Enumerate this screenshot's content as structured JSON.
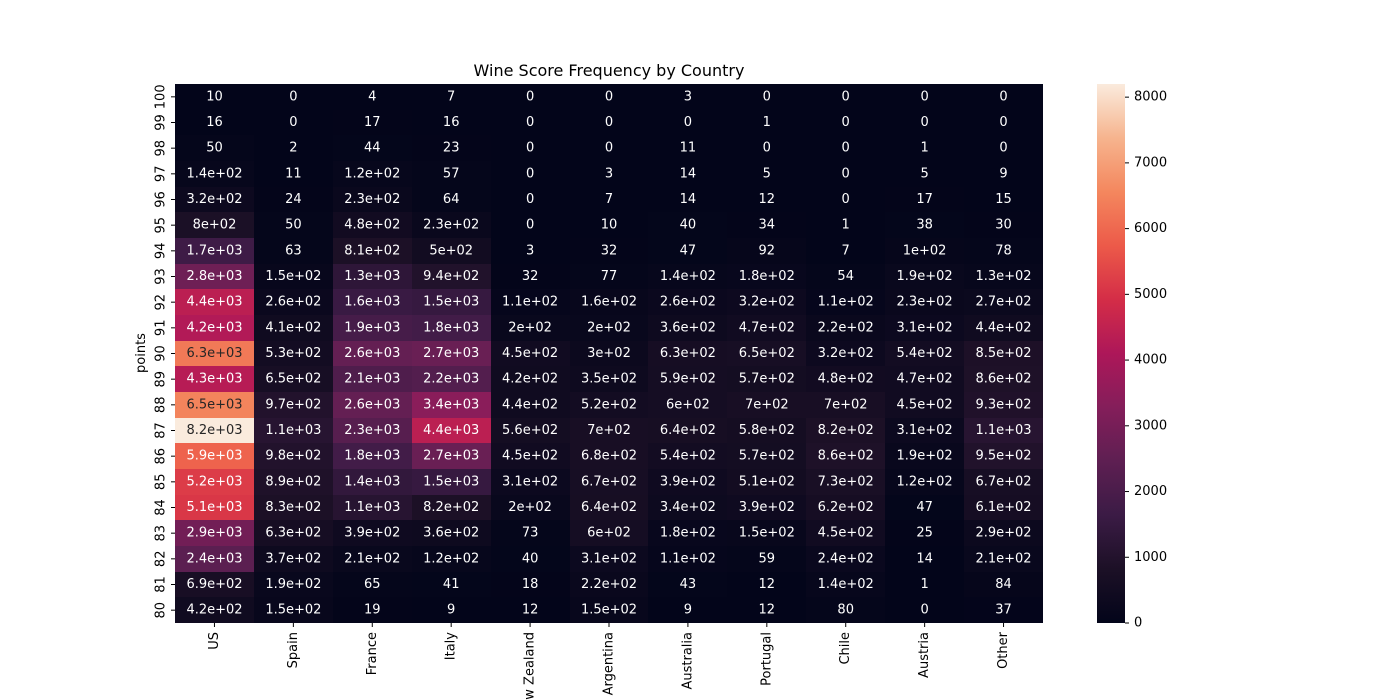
{
  "chart_data": {
    "type": "heatmap",
    "title": "Wine Score Frequency by Country",
    "xlabel": "",
    "ylabel": "points",
    "x_categories": [
      "US",
      "Spain",
      "France",
      "Italy",
      "New Zealand",
      "Argentina",
      "Australia",
      "Portugal",
      "Chile",
      "Austria",
      "Other"
    ],
    "y_categories": [
      "100",
      "99",
      "98",
      "97",
      "96",
      "95",
      "94",
      "93",
      "92",
      "91",
      "90",
      "89",
      "88",
      "87",
      "86",
      "85",
      "84",
      "83",
      "82",
      "81",
      "80"
    ],
    "values": [
      [
        10,
        0,
        4,
        7,
        0,
        0,
        3,
        0,
        0,
        0,
        0
      ],
      [
        16,
        0,
        17,
        16,
        0,
        0,
        0,
        1,
        0,
        0,
        0
      ],
      [
        50,
        2,
        44,
        23,
        0,
        0,
        11,
        0,
        0,
        1,
        0
      ],
      [
        140,
        11,
        120,
        57,
        0,
        3,
        14,
        5,
        0,
        5,
        9
      ],
      [
        320,
        24,
        230,
        64,
        0,
        7,
        14,
        12,
        0,
        17,
        15
      ],
      [
        800,
        50,
        480,
        230,
        0,
        10,
        40,
        34,
        1,
        38,
        30
      ],
      [
        1700,
        63,
        810,
        500,
        3,
        32,
        47,
        92,
        7,
        100,
        78
      ],
      [
        2800,
        150,
        1300,
        940,
        32,
        77,
        140,
        180,
        54,
        190,
        130
      ],
      [
        4400,
        260,
        1600,
        1500,
        110,
        160,
        260,
        320,
        110,
        230,
        270
      ],
      [
        4200,
        410,
        1900,
        1800,
        200,
        200,
        360,
        470,
        220,
        310,
        440
      ],
      [
        6300,
        530,
        2600,
        2700,
        450,
        300,
        630,
        650,
        320,
        540,
        850
      ],
      [
        4300,
        650,
        2100,
        2200,
        420,
        350,
        590,
        570,
        480,
        470,
        860
      ],
      [
        6500,
        970,
        2600,
        3400,
        440,
        520,
        600,
        700,
        700,
        450,
        930
      ],
      [
        8200,
        1100,
        2300,
        4400,
        560,
        700,
        640,
        580,
        820,
        310,
        1100
      ],
      [
        5900,
        980,
        1800,
        2700,
        450,
        680,
        540,
        570,
        860,
        190,
        950
      ],
      [
        5200,
        890,
        1400,
        1500,
        310,
        670,
        390,
        510,
        730,
        120,
        670
      ],
      [
        5100,
        830,
        1100,
        820,
        200,
        640,
        340,
        390,
        620,
        47,
        610
      ],
      [
        2900,
        630,
        390,
        360,
        73,
        600,
        180,
        150,
        450,
        25,
        290
      ],
      [
        2400,
        370,
        210,
        120,
        40,
        310,
        110,
        59,
        240,
        14,
        210
      ],
      [
        690,
        190,
        65,
        41,
        18,
        220,
        43,
        12,
        140,
        1,
        84
      ],
      [
        420,
        150,
        19,
        9,
        12,
        150,
        9,
        12,
        80,
        0,
        37
      ]
    ],
    "labels": [
      [
        "10",
        "0",
        "4",
        "7",
        "0",
        "0",
        "3",
        "0",
        "0",
        "0",
        "0"
      ],
      [
        "16",
        "0",
        "17",
        "16",
        "0",
        "0",
        "0",
        "1",
        "0",
        "0",
        "0"
      ],
      [
        "50",
        "2",
        "44",
        "23",
        "0",
        "0",
        "11",
        "0",
        "0",
        "1",
        "0"
      ],
      [
        "1.4e+02",
        "11",
        "1.2e+02",
        "57",
        "0",
        "3",
        "14",
        "5",
        "0",
        "5",
        "9"
      ],
      [
        "3.2e+02",
        "24",
        "2.3e+02",
        "64",
        "0",
        "7",
        "14",
        "12",
        "0",
        "17",
        "15"
      ],
      [
        "8e+02",
        "50",
        "4.8e+02",
        "2.3e+02",
        "0",
        "10",
        "40",
        "34",
        "1",
        "38",
        "30"
      ],
      [
        "1.7e+03",
        "63",
        "8.1e+02",
        "5e+02",
        "3",
        "32",
        "47",
        "92",
        "7",
        "1e+02",
        "78"
      ],
      [
        "2.8e+03",
        "1.5e+02",
        "1.3e+03",
        "9.4e+02",
        "32",
        "77",
        "1.4e+02",
        "1.8e+02",
        "54",
        "1.9e+02",
        "1.3e+02"
      ],
      [
        "4.4e+03",
        "2.6e+02",
        "1.6e+03",
        "1.5e+03",
        "1.1e+02",
        "1.6e+02",
        "2.6e+02",
        "3.2e+02",
        "1.1e+02",
        "2.3e+02",
        "2.7e+02"
      ],
      [
        "4.2e+03",
        "4.1e+02",
        "1.9e+03",
        "1.8e+03",
        "2e+02",
        "2e+02",
        "3.6e+02",
        "4.7e+02",
        "2.2e+02",
        "3.1e+02",
        "4.4e+02"
      ],
      [
        "6.3e+03",
        "5.3e+02",
        "2.6e+03",
        "2.7e+03",
        "4.5e+02",
        "3e+02",
        "6.3e+02",
        "6.5e+02",
        "3.2e+02",
        "5.4e+02",
        "8.5e+02"
      ],
      [
        "4.3e+03",
        "6.5e+02",
        "2.1e+03",
        "2.2e+03",
        "4.2e+02",
        "3.5e+02",
        "5.9e+02",
        "5.7e+02",
        "4.8e+02",
        "4.7e+02",
        "8.6e+02"
      ],
      [
        "6.5e+03",
        "9.7e+02",
        "2.6e+03",
        "3.4e+03",
        "4.4e+02",
        "5.2e+02",
        "6e+02",
        "7e+02",
        "7e+02",
        "4.5e+02",
        "9.3e+02"
      ],
      [
        "8.2e+03",
        "1.1e+03",
        "2.3e+03",
        "4.4e+03",
        "5.6e+02",
        "7e+02",
        "6.4e+02",
        "5.8e+02",
        "8.2e+02",
        "3.1e+02",
        "1.1e+03"
      ],
      [
        "5.9e+03",
        "9.8e+02",
        "1.8e+03",
        "2.7e+03",
        "4.5e+02",
        "6.8e+02",
        "5.4e+02",
        "5.7e+02",
        "8.6e+02",
        "1.9e+02",
        "9.5e+02"
      ],
      [
        "5.2e+03",
        "8.9e+02",
        "1.4e+03",
        "1.5e+03",
        "3.1e+02",
        "6.7e+02",
        "3.9e+02",
        "5.1e+02",
        "7.3e+02",
        "1.2e+02",
        "6.7e+02"
      ],
      [
        "5.1e+03",
        "8.3e+02",
        "1.1e+03",
        "8.2e+02",
        "2e+02",
        "6.4e+02",
        "3.4e+02",
        "3.9e+02",
        "6.2e+02",
        "47",
        "6.1e+02"
      ],
      [
        "2.9e+03",
        "6.3e+02",
        "3.9e+02",
        "3.6e+02",
        "73",
        "6e+02",
        "1.8e+02",
        "1.5e+02",
        "4.5e+02",
        "25",
        "2.9e+02"
      ],
      [
        "2.4e+03",
        "3.7e+02",
        "2.1e+02",
        "1.2e+02",
        "40",
        "3.1e+02",
        "1.1e+02",
        "59",
        "2.4e+02",
        "14",
        "2.1e+02"
      ],
      [
        "6.9e+02",
        "1.9e+02",
        "65",
        "41",
        "18",
        "2.2e+02",
        "43",
        "12",
        "1.4e+02",
        "1",
        "84"
      ],
      [
        "4.2e+02",
        "1.5e+02",
        "19",
        "9",
        "12",
        "1.5e+02",
        "9",
        "12",
        "80",
        "0",
        "37"
      ]
    ],
    "colorbar": {
      "min": 0,
      "max": 8200,
      "ticks": [
        0,
        1000,
        2000,
        3000,
        4000,
        5000,
        6000,
        7000,
        8000
      ],
      "colormap": "rocket"
    }
  }
}
